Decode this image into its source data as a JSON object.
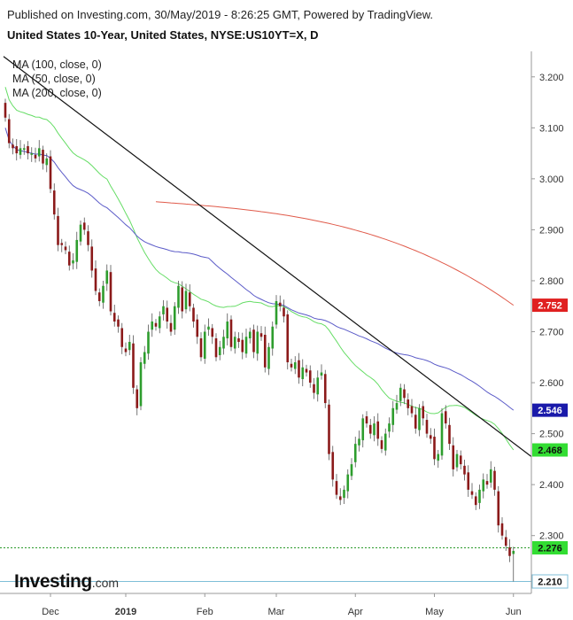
{
  "header": {
    "published": "Published on Investing.com, 30/May/2019 - 8:26:25 GMT, Powered by TradingView.",
    "title": "United States 10-Year, United States, NYSE:US10YT=X, D"
  },
  "legend": [
    "MA (100, close, 0)",
    "MA (50, close, 0)",
    "MA (200, close, 0)"
  ],
  "logo": {
    "main": "Investing",
    "suffix": ".com"
  },
  "colors": {
    "up": "#2e9d2e",
    "down": "#8b1a1a",
    "ma100": "#5b5bc8",
    "ma50": "#66dd66",
    "ma200": "#e05a4a",
    "trendline": "#111111",
    "level_dotted": "#2a9a2a",
    "level_support": "#7fbfd8"
  },
  "chart_data": {
    "type": "candlestick",
    "title": "United States 10-Year, United States, NYSE:US10YT=X, D",
    "ylim": [
      2.19,
      3.25
    ],
    "y_ticks": [
      "3.200",
      "3.100",
      "3.000",
      "2.900",
      "2.800",
      "2.700",
      "2.600",
      "2.500",
      "2.400",
      "2.300"
    ],
    "x_ticks": [
      {
        "label": "Dec",
        "index": 12
      },
      {
        "label": "2019",
        "index": 32
      },
      {
        "label": "Feb",
        "index": 53
      },
      {
        "label": "Mar",
        "index": 72
      },
      {
        "label": "Apr",
        "index": 93
      },
      {
        "label": "May",
        "index": 114
      },
      {
        "label": "Jun",
        "index": 135
      }
    ],
    "closes": [
      3.12,
      3.07,
      3.06,
      3.05,
      3.06,
      3.06,
      3.05,
      3.05,
      3.04,
      3.06,
      3.03,
      3.04,
      2.98,
      2.93,
      2.87,
      2.87,
      2.86,
      2.83,
      2.84,
      2.88,
      2.91,
      2.9,
      2.87,
      2.82,
      2.78,
      2.76,
      2.79,
      2.82,
      2.74,
      2.72,
      2.71,
      2.67,
      2.66,
      2.68,
      2.59,
      2.55,
      2.64,
      2.66,
      2.7,
      2.72,
      2.71,
      2.73,
      2.75,
      2.72,
      2.7,
      2.75,
      2.79,
      2.74,
      2.78,
      2.75,
      2.72,
      2.69,
      2.65,
      2.7,
      2.71,
      2.69,
      2.65,
      2.67,
      2.69,
      2.72,
      2.67,
      2.69,
      2.68,
      2.66,
      2.69,
      2.7,
      2.66,
      2.7,
      2.69,
      2.63,
      2.67,
      2.71,
      2.76,
      2.75,
      2.73,
      2.64,
      2.63,
      2.64,
      2.61,
      2.63,
      2.62,
      2.6,
      2.58,
      2.61,
      2.62,
      2.56,
      2.46,
      2.41,
      2.38,
      2.37,
      2.39,
      2.42,
      2.44,
      2.48,
      2.49,
      2.53,
      2.52,
      2.5,
      2.52,
      2.49,
      2.47,
      2.5,
      2.52,
      2.55,
      2.56,
      2.59,
      2.57,
      2.55,
      2.54,
      2.51,
      2.55,
      2.53,
      2.5,
      2.49,
      2.45,
      2.46,
      2.54,
      2.52,
      2.48,
      2.43,
      2.46,
      2.44,
      2.42,
      2.39,
      2.38,
      2.36,
      2.39,
      2.41,
      2.4,
      2.43,
      2.39,
      2.32,
      2.3,
      2.28,
      2.26,
      2.27
    ],
    "ma50_last": 2.468,
    "ma100_last": 2.546,
    "ma200_last": 2.752,
    "current_level": 2.276,
    "support_level": 2.21,
    "price_labels": [
      "2.752",
      "2.546",
      "2.468",
      "2.276",
      "2.210"
    ]
  }
}
